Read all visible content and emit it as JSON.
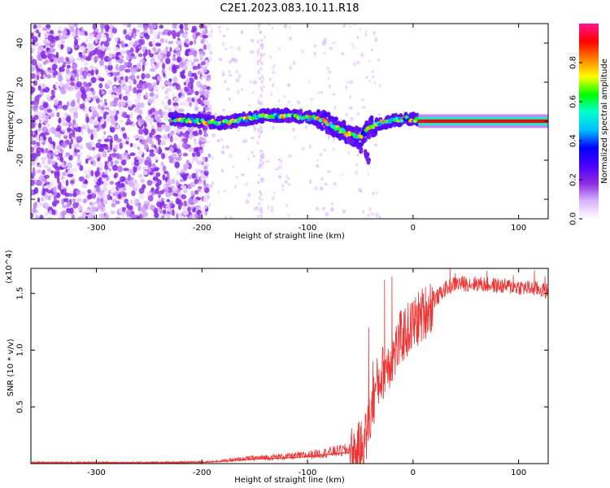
{
  "figure": {
    "title": "C2E1.2023.083.10.11.R18"
  },
  "chart_data": [
    {
      "type": "heatmap",
      "xlabel": "Height of straight line (km)",
      "ylabel": "Frequency (Hz)",
      "xlim": [
        -362,
        128
      ],
      "ylim": [
        -50,
        50
      ],
      "xticks": [
        -300,
        -200,
        -100,
        0,
        100
      ],
      "xtick_labels": [
        "-300",
        "-200",
        "-100",
        "0",
        "100"
      ],
      "yticks": [
        -40,
        -20,
        0,
        20,
        40
      ],
      "ytick_labels": [
        "-40",
        "-20",
        "0",
        "20",
        "40"
      ],
      "colorbar": {
        "label": "Normalized spectral amplitude",
        "range": [
          0.0,
          1.0
        ],
        "ticks": [
          0.0,
          0.2,
          0.4,
          0.6,
          0.8
        ],
        "tick_labels": [
          "0.0",
          "0.2",
          "0.4",
          "0.6",
          "0.8"
        ],
        "colormap": [
          "#ffffff",
          "#d9b3ff",
          "#8a2be2",
          "#4b00ff",
          "#0000ff",
          "#00bfff",
          "#00ffd0",
          "#00ff00",
          "#ffff00",
          "#ff8000",
          "#ff0000",
          "#ff1493"
        ]
      },
      "noise_region_km": [
        -362,
        -200
      ],
      "ridge": {
        "x": [
          -230,
          -200,
          -180,
          -160,
          -140,
          -120,
          -100,
          -90,
          -80,
          -70,
          -60,
          -50,
          -40,
          -30,
          -20,
          -10,
          0,
          10,
          20,
          50,
          80,
          128
        ],
        "freq": [
          1,
          0,
          -1,
          1,
          3,
          3,
          2,
          1,
          -1,
          -4,
          -7,
          -8,
          -3,
          -1,
          0,
          1,
          1,
          0,
          0,
          0,
          0,
          0
        ],
        "peak_amplitude": 1.0
      },
      "tail_feature": {
        "x": [
          -60,
          -50,
          -45,
          -42
        ],
        "freq": [
          -10,
          -14,
          -17,
          -20
        ]
      }
    },
    {
      "type": "line",
      "xlabel": "Height of straight line (km)",
      "ylabel": "SNR (10 * v/v)",
      "multiplier_label": "(x10^4)",
      "xlim": [
        -362,
        128
      ],
      "ylim": [
        0.0,
        1.72
      ],
      "units_scale": 10000,
      "xticks": [
        -300,
        -200,
        -100,
        0,
        100
      ],
      "xtick_labels": [
        "-300",
        "-200",
        "-100",
        "0",
        "100"
      ],
      "yticks": [
        0.5,
        1.0,
        1.5
      ],
      "ytick_labels": [
        "0.5",
        "1.0",
        "1.5"
      ],
      "series": [
        {
          "name": "SNR",
          "color": "#ee3333",
          "envelope_x": [
            -362,
            -300,
            -250,
            -200,
            -180,
            -150,
            -120,
            -100,
            -80,
            -60,
            -50,
            -45,
            -40,
            -35,
            -30,
            -25,
            -20,
            -15,
            -10,
            0,
            10,
            20,
            30,
            40,
            60,
            80,
            100,
            120,
            128
          ],
          "envelope_y": [
            0.005,
            0.005,
            0.005,
            0.01,
            0.02,
            0.04,
            0.05,
            0.06,
            0.08,
            0.1,
            0.15,
            0.25,
            0.45,
            0.7,
            0.8,
            0.9,
            0.95,
            1.05,
            1.15,
            1.25,
            1.35,
            1.45,
            1.55,
            1.6,
            1.6,
            1.58,
            1.57,
            1.55,
            1.53
          ],
          "spikes": [
            [
              -42,
              1.2
            ],
            [
              -38,
              0.9
            ],
            [
              -27,
              1.62
            ],
            [
              -20,
              1.65
            ],
            [
              -12,
              1.35
            ],
            [
              -5,
              1.3
            ],
            [
              35,
              1.72
            ],
            [
              40,
              1.68
            ],
            [
              70,
              1.7
            ],
            [
              95,
              1.66
            ],
            [
              115,
              1.7
            ],
            [
              125,
              1.65
            ]
          ]
        }
      ]
    }
  ]
}
